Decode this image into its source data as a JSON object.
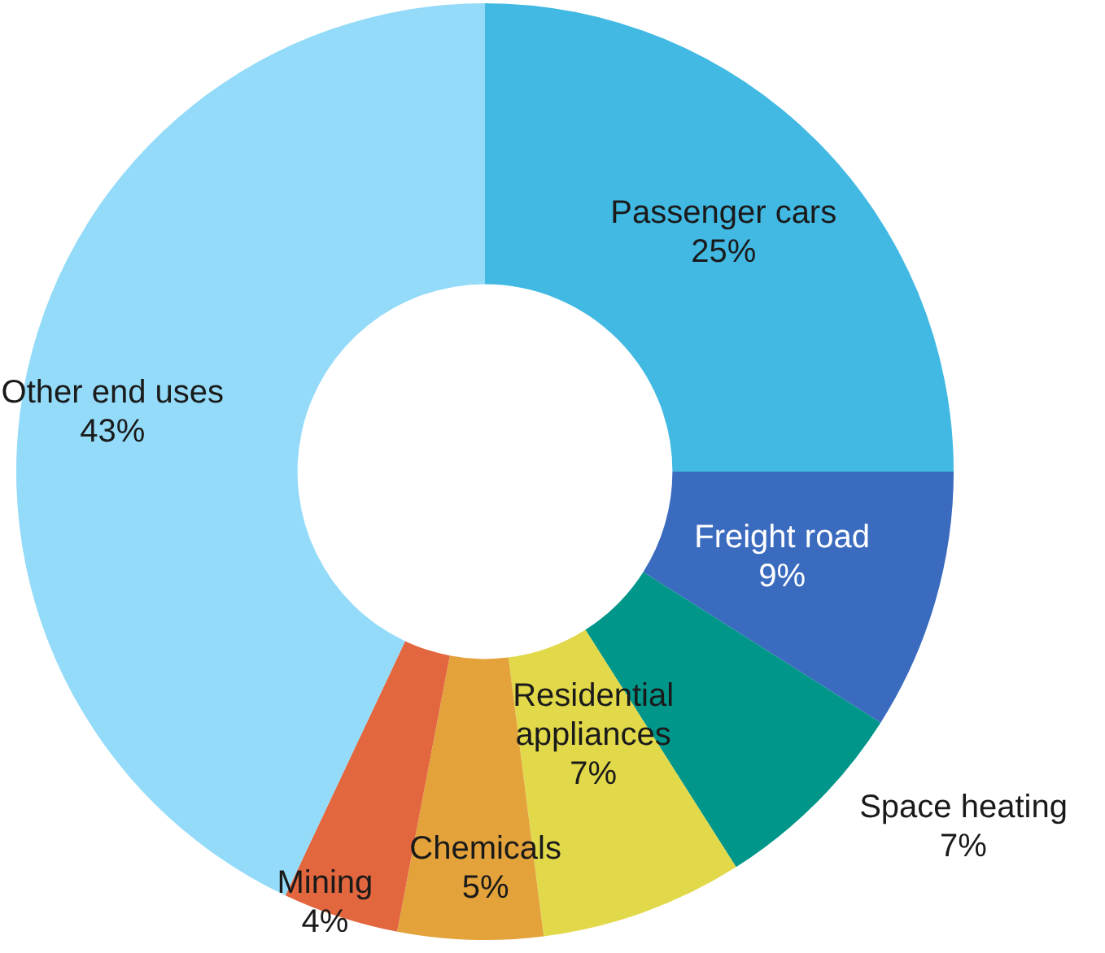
{
  "chart_data": {
    "type": "donut",
    "categories": [
      "Passenger cars",
      "Freight road",
      "Space heating",
      "Residential appliances",
      "Chemicals",
      "Mining",
      "Other end uses"
    ],
    "values": [
      25,
      9,
      7,
      7,
      5,
      4,
      43
    ],
    "value_labels": [
      "25%",
      "9%",
      "7%",
      "7%",
      "5%",
      "4%",
      "43%"
    ],
    "colors": [
      "#41b9e3",
      "#3a6bbf",
      "#00968a",
      "#e1d84a",
      "#e3a23a",
      "#e2663e",
      "#93dbf9"
    ],
    "legend": false
  }
}
